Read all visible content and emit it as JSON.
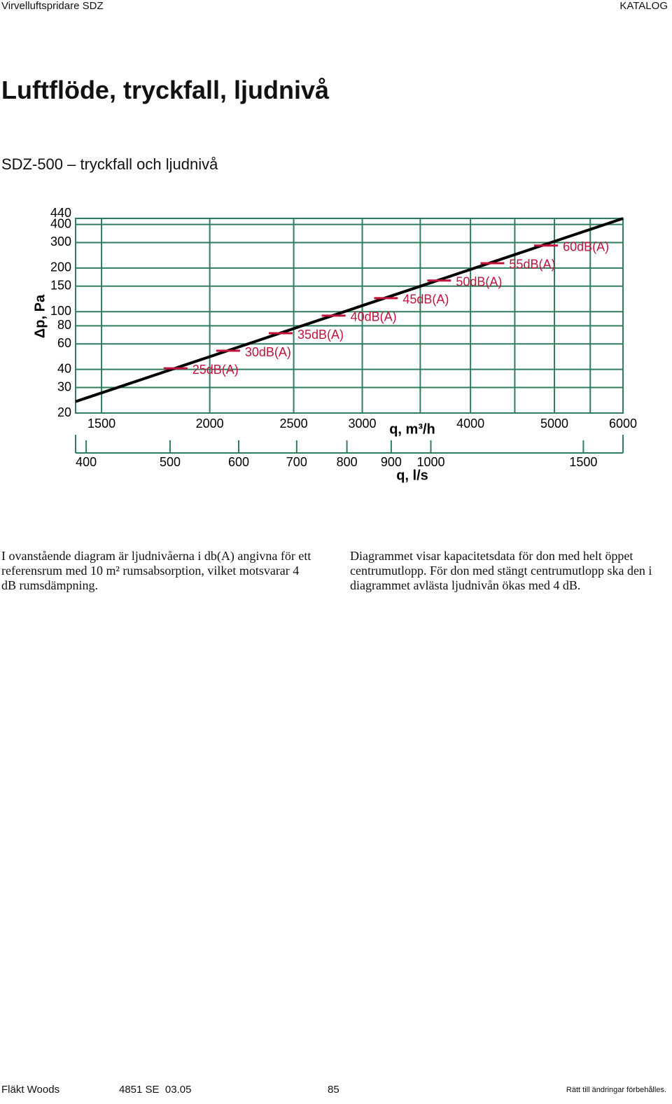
{
  "header": {
    "left": "Virvelluftspridare SDZ",
    "right": "KATALOG"
  },
  "title": "Luftflöde, tryckfall, ljudnivå",
  "subtitle": "SDZ-500 – tryckfall och ljudnivå",
  "chart_data": {
    "type": "line",
    "xlabel": "q, m³/h",
    "x2label": "q, l/s",
    "ylabel": "Δp, Pa",
    "xscale": "log",
    "yscale": "log",
    "xlim": [
      1400,
      6000
    ],
    "xticks": [
      1500,
      2000,
      2500,
      3000,
      4000,
      5000,
      6000
    ],
    "xminor": [
      3500,
      4500,
      5500
    ],
    "x2lim": [
      388.9,
      1666.7
    ],
    "x2ticks": [
      400,
      500,
      600,
      700,
      800,
      900,
      1000,
      1500
    ],
    "ylim": [
      20,
      440
    ],
    "yticks": [
      20,
      30,
      40,
      60,
      80,
      100,
      150,
      200,
      300,
      400,
      440
    ],
    "grid": true,
    "grid_color": "#2e7d5b",
    "series": [
      {
        "color": "#000000",
        "x": [
          1400,
          6000
        ],
        "values": [
          24,
          440
        ]
      }
    ],
    "markers": {
      "color": "#c0143c",
      "x": [
        1826,
        2100,
        2415,
        2780,
        3195,
        3680,
        4240,
        4890
      ],
      "values": [
        40.7,
        53.8,
        71,
        94,
        124,
        164,
        216,
        286
      ],
      "labels": [
        "25dB(A)",
        "30dB(A)",
        "35dB(A)",
        "40dB(A)",
        "45dB(A)",
        "50dB(A)",
        "55dB(A)",
        "60dB(A)"
      ]
    }
  },
  "text": {
    "left": "I ovanstående diagram är ljudnivåerna i db(A) angivna för ett referensrum med 10 m² rumsabsorption, vilket motsvarar 4 dB rumsdämpning.",
    "right": "Diagrammet visar kapacitetsdata för don med helt öppet centrumutlopp. För don med stängt centrumutlopp ska den i diagrammet avlästa ljudnivån ökas med 4 dB."
  },
  "footer": {
    "company": "Fläkt Woods",
    "code": "4851 SE  03.05",
    "page": "85",
    "note": "Rätt till ändringar förbehålles."
  }
}
